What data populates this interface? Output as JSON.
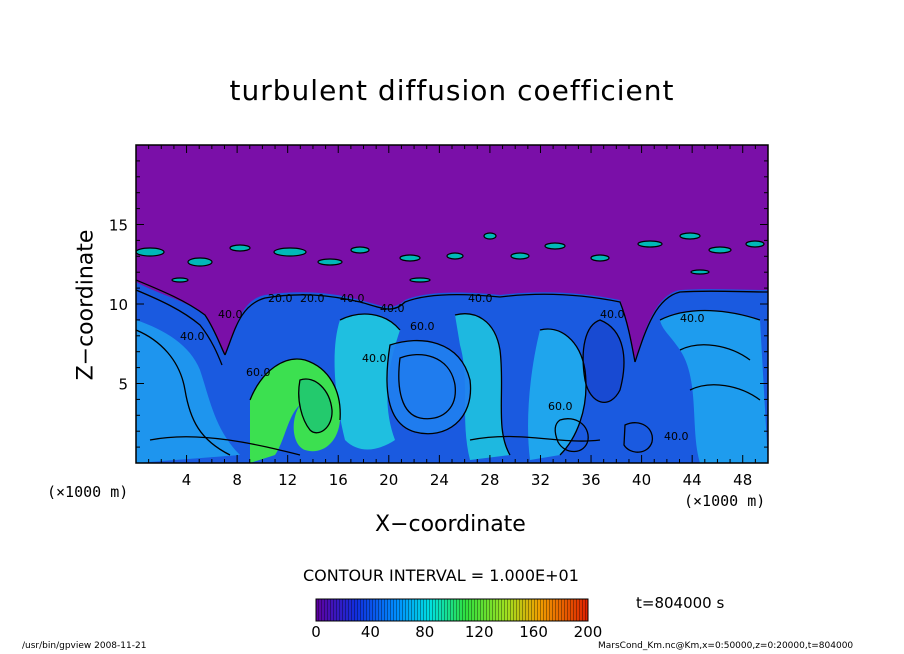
{
  "chart_data": {
    "type": "heatmap",
    "title": "turbulent diffusion coefficient",
    "xlabel": "X−coordinate",
    "ylabel": "Z−coordinate",
    "x_unit_left": "(×1000 m)",
    "x_unit_right": "(×1000 m)",
    "xlim": [
      0,
      50
    ],
    "ylim": [
      0,
      20
    ],
    "x_ticks": [
      4,
      8,
      12,
      16,
      20,
      24,
      28,
      32,
      36,
      40,
      44,
      48
    ],
    "y_ticks": [
      5,
      10,
      15
    ],
    "colorbar": {
      "min": 0,
      "max": 200,
      "ticks": [
        0,
        40,
        80,
        120,
        160,
        200
      ]
    },
    "contour_interval_text": "CONTOUR INTERVAL = 1.000E+01",
    "time_text": "t=804000 s",
    "contour_labels": [
      "20.0",
      "20.0",
      "40.0",
      "40.0",
      "40.0",
      "40.0",
      "60.0",
      "40.0",
      "40.0",
      "60.0",
      "40.0",
      "60.0",
      "40.0",
      "40.0"
    ],
    "colors": {
      "background_top": "#7a0fa8",
      "low": "#1a40d8",
      "mid": "#00d0d0",
      "high": "#40e040"
    }
  },
  "footer": {
    "left": "/usr/bin/gpview  2008-11-21",
    "right": "MarsCond_Km.nc@Km,x=0:50000,z=0:20000,t=804000"
  }
}
